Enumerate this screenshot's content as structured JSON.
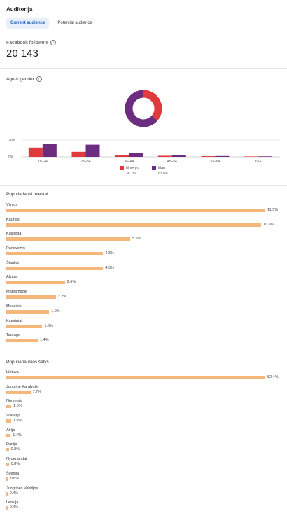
{
  "header": {
    "title": "Auditorija"
  },
  "tabs": [
    {
      "label": "Current audience",
      "active": true
    },
    {
      "label": "Potential audience",
      "active": false
    }
  ],
  "followers": {
    "label": "Facebook followers",
    "value": "20 143"
  },
  "age_gender": {
    "title": "Age & gender",
    "colors": {
      "female": "#e03a3e",
      "male": "#6c2c80"
    },
    "chart_data": {
      "type": "bar",
      "categories": [
        "18–24",
        "25–34",
        "35–44",
        "45–54",
        "55–64",
        "65+"
      ],
      "series": [
        {
          "name": "Moterys",
          "values": [
            11.0,
            6.0,
            2.0,
            1.3,
            0.8,
            0.5
          ]
        },
        {
          "name": "Man",
          "values": [
            15.5,
            14.5,
            5.0,
            2.0,
            1.0,
            0.6
          ]
        }
      ],
      "yticks": [
        "0%",
        "20%"
      ],
      "ylim": [
        0,
        20
      ],
      "grid": true,
      "legend": "bottom"
    },
    "pie": {
      "type": "pie",
      "slices": [
        {
          "name": "Moterys",
          "value": 36.2,
          "label": "36.2%"
        },
        {
          "name": "Man",
          "value": 63.8,
          "label": "63.8%"
        }
      ]
    }
  },
  "cities": {
    "title": "Populiariausi miestai",
    "chart_data": {
      "type": "bar",
      "orientation": "horizontal",
      "max": 11.5,
      "items": [
        {
          "label": "Vilnius",
          "value": 11.5,
          "text": "11.5%"
        },
        {
          "label": "Kaunas",
          "value": 11.3,
          "text": "11.3%"
        },
        {
          "label": "Klaipeda",
          "value": 5.5,
          "text": "5.5%"
        },
        {
          "label": "Panevezys",
          "value": 4.3,
          "text": "4.3%"
        },
        {
          "label": "Šiauliai",
          "value": 4.3,
          "text": "4.3%"
        },
        {
          "label": "Alytus",
          "value": 2.6,
          "text": "2.6%"
        },
        {
          "label": "Marijampole",
          "value": 2.2,
          "text": "2.2%"
        },
        {
          "label": "Mazeikiai",
          "value": 1.9,
          "text": "1.9%"
        },
        {
          "label": "Kedainiai",
          "value": 1.6,
          "text": "1.6%"
        },
        {
          "label": "Taurage",
          "value": 1.4,
          "text": "1.4%"
        }
      ]
    }
  },
  "countries": {
    "title": "Populiariausios šalys",
    "chart_data": {
      "type": "bar",
      "orientation": "horizontal",
      "max": 82.4,
      "items": [
        {
          "label": "Lietuva",
          "value": 82.4,
          "text": "82.4%"
        },
        {
          "label": "Jungtinė Karalystė",
          "value": 7.7,
          "text": "7.7%"
        },
        {
          "label": "Norvegija",
          "value": 1.6,
          "text": "1.6%"
        },
        {
          "label": "Vokietija",
          "value": 1.5,
          "text": "1.5%"
        },
        {
          "label": "Airija",
          "value": 1.4,
          "text": "1.4%"
        },
        {
          "label": "Danija",
          "value": 0.8,
          "text": "0.8%"
        },
        {
          "label": "Nyderlandai",
          "value": 0.8,
          "text": "0.8%"
        },
        {
          "label": "Švedija",
          "value": 0.6,
          "text": "0.6%"
        },
        {
          "label": "Jungtinės Valstijos",
          "value": 0.4,
          "text": "0.4%"
        },
        {
          "label": "Lenkija",
          "value": 0.4,
          "text": "0.4%"
        }
      ]
    }
  }
}
